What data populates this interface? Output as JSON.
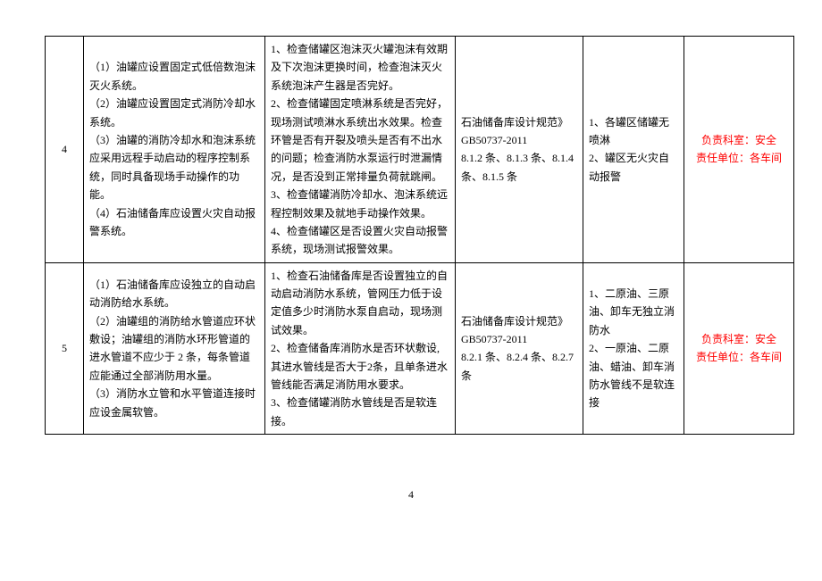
{
  "rows": [
    {
      "num": "4",
      "req": "（1）油罐应设置固定式低倍数泡沫灭火系统。\n（2）油罐应设置固定式消防冷却水系统。\n（3）油罐的消防冷却水和泡沫系统应采用远程手动启动的程序控制系统，同时具备现场手动操作的功能。\n（4）石油储备库应设置火灾自动报警系统。",
      "check": "1、检查储罐区泡沫灭火罐泡沫有效期及下次泡沫更换时间，检查泡沫灭火系统泡沫产生器是否完好。\n2、检查储罐固定喷淋系统是否完好，现场测试喷淋水系统出水效果。检查环管是否有开裂及喷头是否有不出水的问题；检查消防水泵运行时泄漏情况，是否没到正常排量负荷就跳闸。\n3、检查储罐消防冷却水、泡沫系统远程控制效果及就地手动操作效果。\n4、检查储罐区是否设置火灾自动报警系统，现场测试报警效果。",
      "basis": "石油储备库设计规范》GB50737-2011\n8.1.2 条、8.1.3 条、8.1.4 条、8.1.5 条",
      "issue": "1、各罐区储罐无喷淋\n2、罐区无火灾自动报警",
      "resp": "负责科室：安全\n责任单位：各车间"
    },
    {
      "num": "5",
      "req": "（1）石油储备库应设独立的自动启动消防给水系统。\n（2）油罐组的消防给水管道应环状敷设；油罐组的消防水环形管道的进水管道不应少于 2 条，每条管道应能通过全部消防用水量。\n（3）消防水立管和水平管道连接时应设金属软管。",
      "check": "1、检查石油储备库是否设置独立的自动启动消防水系统，管网压力低于设定值多少时消防水泵自启动，现场测试效果。\n2、检查储备库消防水是否环状敷设,其进水管线是否大于2条，且单条进水管线能否满足消防用水要求。\n3、检查储罐消防水管线是否是软连接。",
      "basis": "石油储备库设计规范》GB50737-2011\n8.2.1 条、8.2.4 条、8.2.7 条",
      "issue": "1、二原油、三原油、卸车无独立消防水\n2、一原油、二原油、蜡油、卸车消防水管线不是软连接",
      "resp": "负责科室：安全\n责任单位：各车间"
    }
  ],
  "pageNumber": "4"
}
